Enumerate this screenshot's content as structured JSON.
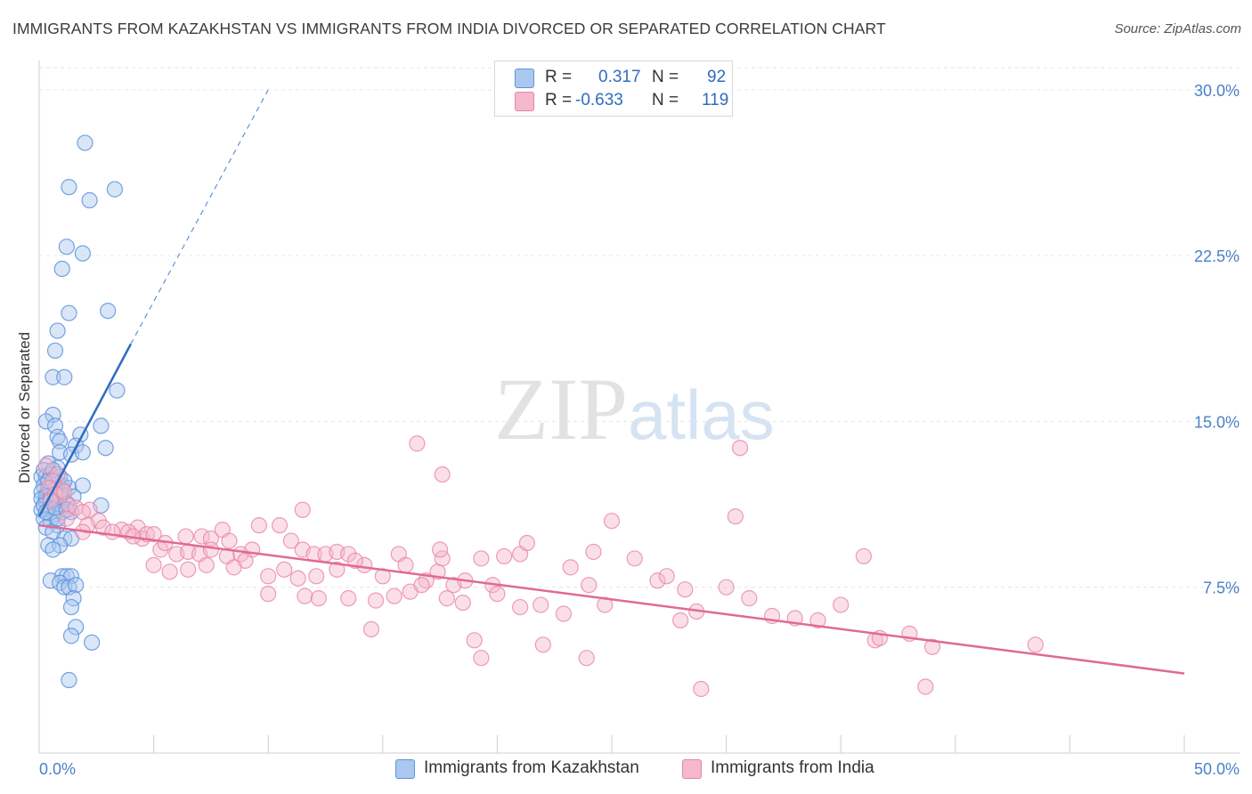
{
  "title": "IMMIGRANTS FROM KAZAKHSTAN VS IMMIGRANTS FROM INDIA DIVORCED OR SEPARATED CORRELATION CHART",
  "source": "Source: ZipAtlas.com",
  "watermark": {
    "zip": "ZIP",
    "atlas": "atlas"
  },
  "colors": {
    "kazakhstan_fill": "#aac8ef",
    "kazakhstan_stroke": "#5d93da",
    "kazakhstan_line": "#2f6cc0",
    "india_fill": "#f5b8cd",
    "india_stroke": "#e884a8",
    "india_line": "#e06a97",
    "axis_text": "#4a80c8",
    "grid": "#e6e6e6"
  },
  "legend": {
    "rows": [
      {
        "r_label": "R =",
        "r_value": "0.317",
        "n_label": "N =",
        "n_value": "92"
      },
      {
        "r_label": "R =",
        "r_value": "-0.633",
        "n_label": "N =",
        "n_value": "119"
      }
    ]
  },
  "chart_data": {
    "type": "scatter",
    "title": "IMMIGRANTS FROM KAZAKHSTAN VS IMMIGRANTS FROM INDIA DIVORCED OR SEPARATED CORRELATION CHART",
    "xlabel": "",
    "ylabel": "Divorced or Separated",
    "xlim": [
      0,
      50
    ],
    "ylim": [
      0,
      31
    ],
    "x_tick_labels": [
      "0.0%",
      "50.0%"
    ],
    "y_ticks": [
      7.5,
      15.0,
      22.5,
      30.0
    ],
    "y_tick_labels": [
      "7.5%",
      "15.0%",
      "22.5%",
      "30.0%"
    ],
    "grid": true,
    "legend_position": "top-center",
    "series": [
      {
        "name": "Immigrants from Kazakhstan",
        "r": 0.317,
        "n": 92,
        "trend": {
          "x0": 0.0,
          "y0": 10.7,
          "x1": 4.0,
          "y1": 18.5,
          "dash_to_x": 10.0,
          "dash_to_y": 30.0
        },
        "points": [
          [
            2.0,
            27.6
          ],
          [
            1.3,
            25.6
          ],
          [
            3.3,
            25.5
          ],
          [
            2.2,
            25.0
          ],
          [
            1.2,
            22.9
          ],
          [
            1.9,
            22.6
          ],
          [
            1.0,
            21.9
          ],
          [
            3.0,
            20.0
          ],
          [
            1.3,
            19.9
          ],
          [
            0.8,
            19.1
          ],
          [
            0.7,
            18.2
          ],
          [
            0.6,
            17.0
          ],
          [
            1.1,
            17.0
          ],
          [
            3.4,
            16.4
          ],
          [
            0.6,
            15.3
          ],
          [
            0.3,
            15.0
          ],
          [
            0.7,
            14.8
          ],
          [
            2.7,
            14.8
          ],
          [
            1.8,
            14.4
          ],
          [
            0.8,
            14.3
          ],
          [
            0.9,
            14.1
          ],
          [
            1.6,
            13.9
          ],
          [
            2.9,
            13.8
          ],
          [
            0.9,
            13.6
          ],
          [
            1.4,
            13.5
          ],
          [
            1.9,
            13.6
          ],
          [
            0.4,
            13.1
          ],
          [
            0.8,
            12.9
          ],
          [
            0.1,
            12.5
          ],
          [
            0.3,
            12.5
          ],
          [
            0.6,
            12.4
          ],
          [
            0.8,
            12.2
          ],
          [
            0.2,
            12.1
          ],
          [
            0.5,
            12.0
          ],
          [
            1.0,
            12.1
          ],
          [
            1.3,
            12.0
          ],
          [
            1.9,
            12.1
          ],
          [
            0.1,
            11.8
          ],
          [
            0.4,
            11.8
          ],
          [
            0.7,
            11.7
          ],
          [
            1.0,
            11.7
          ],
          [
            1.5,
            11.6
          ],
          [
            0.1,
            11.5
          ],
          [
            0.3,
            11.4
          ],
          [
            0.6,
            11.3
          ],
          [
            0.9,
            11.2
          ],
          [
            1.2,
            11.3
          ],
          [
            2.7,
            11.2
          ],
          [
            0.1,
            11.0
          ],
          [
            0.4,
            11.0
          ],
          [
            0.7,
            10.8
          ],
          [
            1.0,
            10.9
          ],
          [
            1.4,
            10.9
          ],
          [
            0.2,
            10.6
          ],
          [
            0.5,
            10.5
          ],
          [
            0.8,
            10.3
          ],
          [
            0.3,
            10.2
          ],
          [
            0.6,
            10.0
          ],
          [
            1.1,
            9.7
          ],
          [
            1.4,
            9.7
          ],
          [
            0.4,
            9.4
          ],
          [
            0.9,
            9.4
          ],
          [
            0.6,
            9.2
          ],
          [
            1.0,
            8.0
          ],
          [
            1.2,
            8.0
          ],
          [
            1.4,
            8.0
          ],
          [
            0.5,
            7.8
          ],
          [
            0.9,
            7.7
          ],
          [
            1.1,
            7.5
          ],
          [
            1.3,
            7.5
          ],
          [
            1.6,
            7.6
          ],
          [
            1.5,
            7.0
          ],
          [
            1.4,
            6.6
          ],
          [
            1.6,
            5.7
          ],
          [
            1.4,
            5.3
          ],
          [
            2.3,
            5.0
          ],
          [
            1.3,
            3.3
          ],
          [
            0.2,
            12.8
          ],
          [
            0.5,
            12.6
          ],
          [
            0.7,
            11.9
          ],
          [
            0.3,
            11.6
          ],
          [
            0.9,
            12.5
          ],
          [
            1.1,
            12.3
          ],
          [
            0.2,
            11.2
          ],
          [
            0.5,
            11.5
          ],
          [
            0.8,
            10.6
          ],
          [
            0.4,
            12.3
          ],
          [
            0.6,
            12.8
          ],
          [
            0.3,
            10.9
          ],
          [
            0.7,
            11.1
          ],
          [
            1.2,
            11.0
          ],
          [
            0.9,
            11.6
          ]
        ]
      },
      {
        "name": "Immigrants from India",
        "r": -0.633,
        "n": 119,
        "trend": {
          "x0": 0.0,
          "y0": 10.3,
          "x1": 50.0,
          "y1": 3.6
        },
        "points": [
          [
            0.3,
            13.0
          ],
          [
            0.8,
            12.6
          ],
          [
            0.6,
            12.3
          ],
          [
            0.4,
            12.0
          ],
          [
            1.0,
            11.9
          ],
          [
            0.7,
            11.7
          ],
          [
            1.1,
            11.8
          ],
          [
            0.5,
            11.4
          ],
          [
            1.3,
            11.2
          ],
          [
            1.6,
            11.1
          ],
          [
            2.2,
            11.0
          ],
          [
            1.9,
            10.9
          ],
          [
            1.2,
            10.6
          ],
          [
            2.6,
            10.5
          ],
          [
            2.1,
            10.3
          ],
          [
            3.6,
            10.1
          ],
          [
            4.3,
            10.2
          ],
          [
            2.8,
            10.2
          ],
          [
            3.2,
            10.0
          ],
          [
            1.9,
            10.0
          ],
          [
            3.9,
            10.0
          ],
          [
            4.5,
            9.7
          ],
          [
            4.7,
            9.9
          ],
          [
            4.1,
            9.8
          ],
          [
            5.0,
            9.9
          ],
          [
            6.4,
            9.8
          ],
          [
            7.1,
            9.8
          ],
          [
            7.5,
            9.7
          ],
          [
            8.0,
            10.1
          ],
          [
            8.3,
            9.6
          ],
          [
            5.3,
            9.2
          ],
          [
            5.5,
            9.5
          ],
          [
            6.0,
            9.0
          ],
          [
            6.5,
            9.1
          ],
          [
            7.0,
            9.0
          ],
          [
            7.5,
            9.2
          ],
          [
            8.2,
            8.9
          ],
          [
            8.8,
            9.0
          ],
          [
            9.3,
            9.2
          ],
          [
            9.0,
            8.7
          ],
          [
            9.6,
            10.3
          ],
          [
            10.5,
            10.3
          ],
          [
            11.0,
            9.6
          ],
          [
            11.5,
            9.2
          ],
          [
            12.0,
            9.0
          ],
          [
            12.5,
            9.0
          ],
          [
            13.0,
            9.1
          ],
          [
            13.5,
            9.0
          ],
          [
            14.2,
            8.5
          ],
          [
            5.0,
            8.5
          ],
          [
            5.7,
            8.2
          ],
          [
            6.5,
            8.3
          ],
          [
            7.3,
            8.5
          ],
          [
            8.5,
            8.4
          ],
          [
            10.0,
            8.0
          ],
          [
            10.7,
            8.3
          ],
          [
            11.3,
            7.9
          ],
          [
            12.1,
            8.0
          ],
          [
            13.0,
            8.3
          ],
          [
            13.8,
            8.7
          ],
          [
            15.0,
            8.0
          ],
          [
            15.7,
            9.0
          ],
          [
            16.0,
            8.5
          ],
          [
            16.9,
            7.8
          ],
          [
            17.4,
            8.2
          ],
          [
            17.6,
            8.8
          ],
          [
            18.1,
            7.6
          ],
          [
            18.6,
            7.8
          ],
          [
            19.3,
            8.8
          ],
          [
            19.8,
            7.6
          ],
          [
            20.3,
            8.9
          ],
          [
            21.0,
            9.0
          ],
          [
            21.3,
            9.5
          ],
          [
            10.0,
            7.2
          ],
          [
            11.6,
            7.1
          ],
          [
            12.2,
            7.0
          ],
          [
            13.5,
            7.0
          ],
          [
            14.7,
            6.9
          ],
          [
            15.5,
            7.1
          ],
          [
            16.2,
            7.3
          ],
          [
            16.7,
            7.6
          ],
          [
            17.8,
            7.0
          ],
          [
            18.5,
            6.8
          ],
          [
            20.0,
            7.2
          ],
          [
            21.0,
            6.6
          ],
          [
            21.9,
            6.7
          ],
          [
            22.9,
            6.3
          ],
          [
            24.0,
            7.6
          ],
          [
            24.7,
            6.7
          ],
          [
            26.0,
            8.8
          ],
          [
            27.0,
            7.8
          ],
          [
            27.4,
            8.0
          ],
          [
            28.0,
            6.0
          ],
          [
            28.2,
            7.4
          ],
          [
            28.7,
            6.4
          ],
          [
            25.0,
            10.5
          ],
          [
            30.0,
            7.5
          ],
          [
            31.0,
            7.0
          ],
          [
            32.0,
            6.2
          ],
          [
            33.0,
            6.1
          ],
          [
            34.0,
            6.0
          ],
          [
            35.0,
            6.7
          ],
          [
            36.0,
            8.9
          ],
          [
            36.5,
            5.1
          ],
          [
            38.0,
            5.4
          ],
          [
            39.0,
            4.8
          ],
          [
            11.5,
            11.0
          ],
          [
            17.5,
            9.2
          ],
          [
            17.6,
            12.6
          ],
          [
            16.5,
            14.0
          ],
          [
            30.4,
            10.7
          ],
          [
            30.6,
            13.8
          ],
          [
            23.2,
            8.4
          ],
          [
            14.5,
            5.6
          ],
          [
            19.0,
            5.1
          ],
          [
            22.0,
            4.9
          ],
          [
            23.9,
            4.3
          ],
          [
            19.3,
            4.3
          ],
          [
            28.9,
            2.9
          ],
          [
            38.7,
            3.0
          ],
          [
            36.7,
            5.2
          ],
          [
            43.5,
            4.9
          ],
          [
            24.2,
            9.1
          ]
        ]
      }
    ]
  }
}
